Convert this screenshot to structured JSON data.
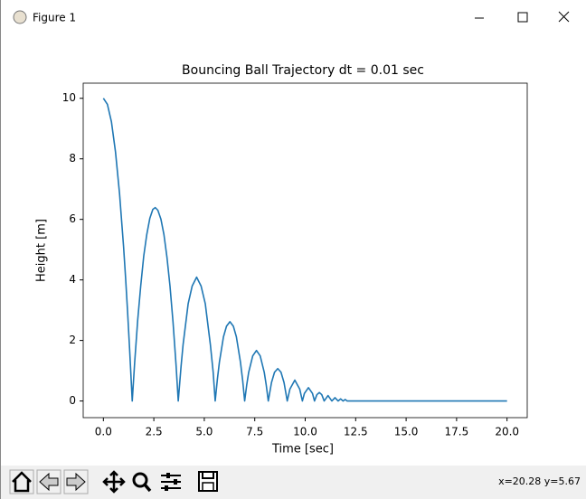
{
  "window": {
    "title": "Figure 1"
  },
  "toolbar": {
    "coordinates": "x=20.28 y=5.67"
  },
  "chart_data": {
    "type": "line",
    "title": "Bouncing Ball Trajectory dt = 0.01 sec",
    "x_label": "Time [sec]",
    "y_label": "Height [m]",
    "color": "#1f77b4",
    "x": [
      0,
      0.2,
      0.4,
      0.6,
      0.8,
      1.0,
      1.1,
      1.2,
      1.3,
      1.43,
      1.55,
      1.7,
      1.85,
      2.0,
      2.15,
      2.3,
      2.45,
      2.57,
      2.7,
      2.85,
      3.0,
      3.15,
      3.3,
      3.45,
      3.6,
      3.71,
      3.85,
      3.95,
      4.2,
      4.4,
      4.62,
      4.84,
      5.05,
      5.3,
      5.44,
      5.54,
      5.65,
      5.75,
      5.95,
      6.1,
      6.27,
      6.44,
      6.59,
      6.79,
      6.9,
      7.0,
      7.1,
      7.2,
      7.4,
      7.585,
      7.77,
      7.97,
      8.07,
      8.17,
      8.33,
      8.48,
      8.64,
      8.8,
      8.95,
      9.11,
      9.24,
      9.485,
      9.73,
      9.86,
      9.96,
      10.16,
      10.36,
      10.46,
      10.58,
      10.7,
      10.82,
      10.94,
      11.13,
      11.32,
      11.475,
      11.63,
      11.755,
      11.88,
      11.98,
      12.08,
      12.5,
      20.0
    ],
    "values": [
      10,
      9.8,
      9.22,
      8.23,
      6.86,
      5.1,
      4.07,
      2.94,
      1.71,
      0,
      1.27,
      2.67,
      3.8,
      4.79,
      5.5,
      6.03,
      6.33,
      6.39,
      6.3,
      6.01,
      5.5,
      4.75,
      3.8,
      2.61,
      1.2,
      0,
      1.15,
      1.87,
      3.21,
      3.8,
      4.09,
      3.8,
      3.21,
      1.87,
      0.95,
      0,
      0.73,
      1.29,
      2.12,
      2.47,
      2.62,
      2.47,
      2.12,
      1.29,
      0.69,
      0,
      0.52,
      0.95,
      1.49,
      1.67,
      1.49,
      0.95,
      0.52,
      0,
      0.61,
      0.95,
      1.07,
      0.95,
      0.61,
      0,
      0.39,
      0.69,
      0.39,
      0,
      0.25,
      0.44,
      0.25,
      0,
      0.21,
      0.28,
      0.21,
      0,
      0.18,
      0,
      0.11,
      0,
      0.07,
      0,
      0.05,
      0,
      0,
      0
    ],
    "xlim": [
      -1,
      21
    ],
    "ylim": [
      -0.55,
      10.5
    ],
    "xticks": [
      {
        "value": 0,
        "label": "0.0"
      },
      {
        "value": 2.5,
        "label": "2.5"
      },
      {
        "value": 5,
        "label": "5.0"
      },
      {
        "value": 7.5,
        "label": "7.5"
      },
      {
        "value": 10,
        "label": "10.0"
      },
      {
        "value": 12.5,
        "label": "12.5"
      },
      {
        "value": 15,
        "label": "15.0"
      },
      {
        "value": 17.5,
        "label": "17.5"
      },
      {
        "value": 20,
        "label": "20.0"
      }
    ],
    "yticks": [
      0,
      2,
      4,
      6,
      8,
      10
    ]
  }
}
